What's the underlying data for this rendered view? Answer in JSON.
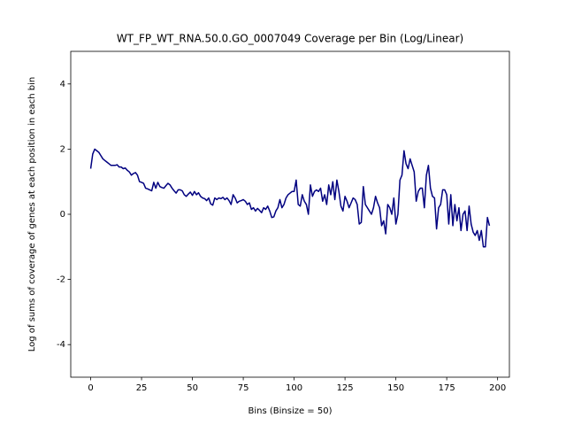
{
  "chart_data": {
    "type": "line",
    "title": "WT_FP_WT_RNA.50.0.GO_0007049 Coverage per Bin (Log/Linear)",
    "x_label": "Bins (Binsize = 50)",
    "y_label": "Log of sums of coverage of genes at each position in each bin",
    "x": [
      0,
      1,
      2,
      3,
      4,
      5,
      6,
      7,
      8,
      9,
      10,
      11,
      12,
      13,
      14,
      15,
      16,
      17,
      18,
      19,
      20,
      21,
      22,
      23,
      24,
      25,
      26,
      27,
      28,
      29,
      30,
      31,
      32,
      33,
      34,
      35,
      36,
      37,
      38,
      39,
      40,
      41,
      42,
      43,
      44,
      45,
      46,
      47,
      48,
      49,
      50,
      51,
      52,
      53,
      54,
      55,
      56,
      57,
      58,
      59,
      60,
      61,
      62,
      63,
      64,
      65,
      66,
      67,
      68,
      69,
      70,
      71,
      72,
      73,
      74,
      75,
      76,
      77,
      78,
      79,
      80,
      81,
      82,
      83,
      84,
      85,
      86,
      87,
      88,
      89,
      90,
      91,
      92,
      93,
      94,
      95,
      96,
      97,
      98,
      99,
      100,
      101,
      102,
      103,
      104,
      105,
      106,
      107,
      108,
      109,
      110,
      111,
      112,
      113,
      114,
      115,
      116,
      117,
      118,
      119,
      120,
      121,
      122,
      123,
      124,
      125,
      126,
      127,
      128,
      129,
      130,
      131,
      132,
      133,
      134,
      135,
      136,
      137,
      138,
      139,
      140,
      141,
      142,
      143,
      144,
      145,
      146,
      147,
      148,
      149,
      150,
      151,
      152,
      153,
      154,
      155,
      156,
      157,
      158,
      159,
      160,
      161,
      162,
      163,
      164,
      165,
      166,
      167,
      168,
      169,
      170,
      171,
      172,
      173,
      174,
      175,
      176,
      177,
      178,
      179,
      180,
      181,
      182,
      183,
      184,
      185,
      186,
      187,
      188,
      189,
      190,
      191,
      192,
      193,
      194,
      195,
      196
    ],
    "series": [
      {
        "name": "coverage",
        "color": "#000080",
        "values": [
          1.4,
          1.85,
          2.0,
          1.95,
          1.9,
          1.8,
          1.7,
          1.65,
          1.6,
          1.55,
          1.5,
          1.5,
          1.5,
          1.52,
          1.45,
          1.45,
          1.4,
          1.42,
          1.35,
          1.3,
          1.2,
          1.25,
          1.28,
          1.2,
          1.0,
          0.98,
          0.95,
          0.8,
          0.78,
          0.75,
          0.72,
          0.98,
          0.8,
          0.98,
          0.85,
          0.82,
          0.8,
          0.88,
          0.95,
          0.9,
          0.8,
          0.72,
          0.65,
          0.75,
          0.75,
          0.72,
          0.6,
          0.55,
          0.62,
          0.68,
          0.58,
          0.7,
          0.6,
          0.66,
          0.55,
          0.5,
          0.48,
          0.42,
          0.5,
          0.32,
          0.28,
          0.5,
          0.45,
          0.5,
          0.48,
          0.52,
          0.45,
          0.5,
          0.42,
          0.3,
          0.6,
          0.5,
          0.35,
          0.4,
          0.42,
          0.45,
          0.4,
          0.3,
          0.35,
          0.15,
          0.2,
          0.1,
          0.18,
          0.12,
          0.05,
          0.2,
          0.15,
          0.25,
          0.1,
          -0.1,
          -0.08,
          0.1,
          0.2,
          0.45,
          0.2,
          0.3,
          0.5,
          0.6,
          0.65,
          0.7,
          0.7,
          1.05,
          0.3,
          0.25,
          0.6,
          0.4,
          0.3,
          0.0,
          0.9,
          0.55,
          0.7,
          0.75,
          0.7,
          0.8,
          0.4,
          0.6,
          0.3,
          0.9,
          0.6,
          1.0,
          0.45,
          1.05,
          0.7,
          0.25,
          0.1,
          0.55,
          0.4,
          0.2,
          0.35,
          0.5,
          0.45,
          0.3,
          -0.3,
          -0.25,
          0.85,
          0.3,
          0.2,
          0.1,
          0.0,
          0.2,
          0.55,
          0.35,
          0.2,
          -0.35,
          -0.2,
          -0.6,
          0.3,
          0.2,
          0.0,
          0.5,
          -0.3,
          0.0,
          1.05,
          1.2,
          1.95,
          1.55,
          1.4,
          1.7,
          1.5,
          1.3,
          0.4,
          0.7,
          0.8,
          0.8,
          0.2,
          1.2,
          1.5,
          0.8,
          0.55,
          0.5,
          -0.45,
          0.2,
          0.3,
          0.75,
          0.75,
          0.6,
          -0.3,
          0.6,
          -0.35,
          0.3,
          -0.2,
          0.2,
          -0.5,
          0.0,
          0.1,
          -0.5,
          0.25,
          -0.3,
          -0.55,
          -0.65,
          -0.5,
          -0.8,
          -0.5,
          -1.0,
          -1.0,
          -0.1,
          -0.35
        ]
      }
    ],
    "xlim": [
      -9.8,
      205.8
    ],
    "xticks": [
      0,
      25,
      50,
      75,
      100,
      125,
      150,
      175,
      200
    ],
    "ylim": [
      -5,
      5
    ],
    "yticks": [
      -4,
      -2,
      0,
      2,
      4
    ]
  }
}
